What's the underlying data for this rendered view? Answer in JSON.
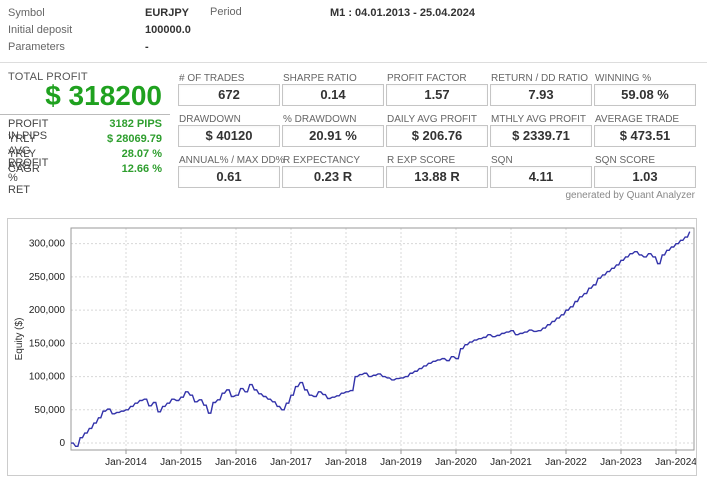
{
  "header": {
    "symbol_label": "Symbol",
    "symbol_value": "EURJPY",
    "period_label": "Period",
    "period_value": "M1 : 04.01.2013 - 25.04.2024",
    "initial_deposit_label": "Initial deposit",
    "initial_deposit_value": "100000.0",
    "parameters_label": "Parameters",
    "parameters_value": "-"
  },
  "summary": {
    "title": "TOTAL PROFIT",
    "total_profit": "$ 318200",
    "rows": [
      {
        "label": "PROFIT IN PIPS",
        "value": "3182 PIPS"
      },
      {
        "label": "YRLY AVG PROFIT",
        "value": "$ 28069.79"
      },
      {
        "label": "YRLY AVG % RET",
        "value": "28.07 %"
      },
      {
        "label": "CAGR",
        "value": "12.66 %"
      }
    ]
  },
  "stats": [
    {
      "label": "# OF TRADES",
      "value": "672"
    },
    {
      "label": "SHARPE RATIO",
      "value": "0.14"
    },
    {
      "label": "PROFIT FACTOR",
      "value": "1.57"
    },
    {
      "label": "RETURN / DD RATIO",
      "value": "7.93"
    },
    {
      "label": "WINNING %",
      "value": "59.08 %"
    },
    {
      "label": "DRAWDOWN",
      "value": "$ 40120"
    },
    {
      "label": "% DRAWDOWN",
      "value": "20.91 %"
    },
    {
      "label": "DAILY AVG PROFIT",
      "value": "$ 206.76"
    },
    {
      "label": "MTHLY AVG PROFIT",
      "value": "$ 2339.71"
    },
    {
      "label": "AVERAGE TRADE",
      "value": "$ 473.51"
    },
    {
      "label": "ANNUAL% / MAX DD%",
      "value": "0.61"
    },
    {
      "label": "R EXPECTANCY",
      "value": "0.23 R"
    },
    {
      "label": "R EXP SCORE",
      "value": "13.88 R"
    },
    {
      "label": "SQN",
      "value": "4.11"
    },
    {
      "label": "SQN SCORE",
      "value": "1.03"
    }
  ],
  "credit": "generated by Quant Analyzer",
  "colors": {
    "profit_green": "#1fa11f",
    "small_green": "#2e9e2e",
    "line_blue": "#3333aa",
    "grid_gray": "#d8d8d8",
    "axis_gray": "#999999"
  },
  "chart_data": {
    "type": "line",
    "title": "",
    "xlabel": "",
    "ylabel": "Equity ($)",
    "series_name": "Equity",
    "start_month": "2013-01",
    "end_month": "2024-04",
    "x_tick_labels": [
      "Jan-2014",
      "Jan-2015",
      "Jan-2016",
      "Jan-2017",
      "Jan-2018",
      "Jan-2019",
      "Jan-2020",
      "Jan-2021",
      "Jan-2022",
      "Jan-2023",
      "Jan-2024"
    ],
    "x_tick_month_indices": [
      12,
      24,
      36,
      48,
      60,
      72,
      84,
      96,
      108,
      120,
      132
    ],
    "y_ticks": [
      0,
      50000,
      100000,
      150000,
      200000,
      250000,
      300000
    ],
    "ylim": [
      -10500,
      323600
    ],
    "grid": true,
    "legend": false,
    "values": [
      0,
      -5000,
      8000,
      15000,
      22000,
      30000,
      38000,
      48000,
      51000,
      44000,
      46000,
      48000,
      50000,
      55000,
      60000,
      64000,
      66000,
      56000,
      61000,
      47000,
      55000,
      60000,
      66000,
      64000,
      69000,
      77000,
      72000,
      62000,
      65000,
      57000,
      45000,
      61000,
      65000,
      75000,
      80000,
      70000,
      72000,
      82000,
      77000,
      88000,
      80000,
      74000,
      70000,
      66000,
      62000,
      55000,
      50000,
      60000,
      72000,
      85000,
      91000,
      80000,
      72000,
      70000,
      77000,
      73000,
      67000,
      69000,
      71000,
      75000,
      77000,
      79000,
      100000,
      103000,
      105000,
      100000,
      102000,
      104000,
      100000,
      98000,
      95000,
      97000,
      98000,
      100000,
      105000,
      108000,
      112000,
      116000,
      120000,
      123000,
      125000,
      127000,
      124000,
      130000,
      127000,
      142000,
      148000,
      152000,
      155000,
      157000,
      159000,
      163000,
      160000,
      162000,
      165000,
      167000,
      169000,
      163000,
      165000,
      167000,
      170000,
      168000,
      169000,
      173000,
      178000,
      183000,
      188000,
      193000,
      200000,
      205000,
      213000,
      220000,
      225000,
      233000,
      238000,
      248000,
      253000,
      258000,
      263000,
      268000,
      275000,
      280000,
      285000,
      288000,
      283000,
      280000,
      285000,
      280000,
      270000,
      283000,
      290000,
      295000,
      300000,
      305000,
      310000,
      318200
    ]
  }
}
